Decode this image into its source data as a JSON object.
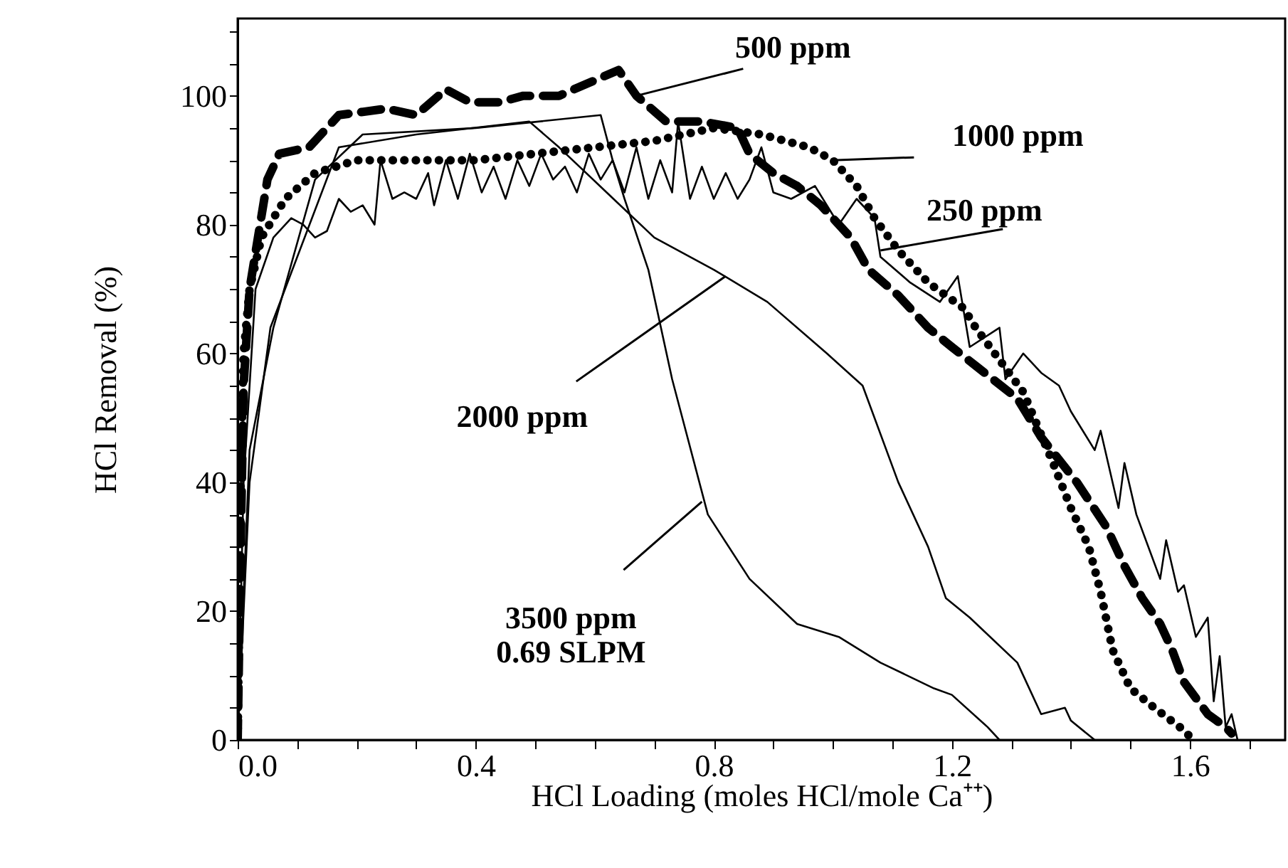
{
  "chart_data": {
    "type": "line",
    "xlabel": "HCl Loading (moles HCl/mole Ca⁺⁺)",
    "ylabel": "HCl Removal (%)",
    "xlim": [
      0,
      1.76
    ],
    "ylim": [
      0,
      112
    ],
    "xticks": [
      {
        "value": 0,
        "label": "0.0"
      },
      {
        "value": 0.1,
        "label": null
      },
      {
        "value": 0.2,
        "label": null
      },
      {
        "value": 0.3,
        "label": null
      },
      0.4,
      {
        "value": 0.5,
        "label": null
      },
      {
        "value": 0.6,
        "label": null
      },
      {
        "value": 0.7,
        "label": null
      },
      0.8,
      {
        "value": 0.9,
        "label": null
      },
      {
        "value": 1.0,
        "label": null
      },
      {
        "value": 1.1,
        "label": null
      },
      1.2,
      {
        "value": 1.3,
        "label": null
      },
      {
        "value": 1.4,
        "label": null
      },
      {
        "value": 1.5,
        "label": null
      },
      1.6,
      {
        "value": 1.7,
        "label": null
      }
    ],
    "yticks": [
      0,
      {
        "value": 5,
        "label": null
      },
      {
        "value": 10,
        "label": null
      },
      {
        "value": 15,
        "label": null
      },
      20,
      {
        "value": 25,
        "label": null
      },
      {
        "value": 30,
        "label": null
      },
      {
        "value": 35,
        "label": null
      },
      40,
      {
        "value": 45,
        "label": null
      },
      {
        "value": 50,
        "label": null
      },
      {
        "value": 55,
        "label": null
      },
      60,
      {
        "value": 65,
        "label": null
      },
      {
        "value": 70,
        "label": null
      },
      {
        "value": 75,
        "label": null
      },
      80,
      {
        "value": 85,
        "label": null
      },
      {
        "value": 90,
        "label": null
      },
      {
        "value": 95,
        "label": null
      },
      100,
      {
        "value": 105,
        "label": null
      },
      {
        "value": 110,
        "label": null
      }
    ],
    "grid": false,
    "series": [
      {
        "color": "#000000",
        "line_style": "solid",
        "x": [
          0,
          0.01,
          0.03,
          0.06,
          0.09,
          0.11,
          0.13,
          0.15,
          0.17,
          0.19,
          0.21,
          0.23,
          0.24,
          0.26,
          0.28,
          0.3,
          0.32,
          0.33,
          0.35,
          0.37,
          0.39,
          0.41,
          0.43,
          0.45,
          0.47,
          0.49,
          0.51,
          0.53,
          0.55,
          0.57,
          0.59,
          0.61,
          0.63,
          0.65,
          0.67,
          0.69,
          0.71,
          0.73,
          0.74,
          0.76,
          0.78,
          0.8,
          0.82,
          0.84,
          0.86,
          0.88,
          0.9,
          0.93,
          0.97,
          1.01,
          1.04,
          1.07,
          1.08,
          1.13,
          1.18,
          1.21,
          1.23,
          1.28,
          1.29,
          1.32,
          1.35,
          1.38,
          1.4,
          1.44,
          1.45,
          1.48,
          1.49,
          1.51,
          1.55,
          1.56,
          1.58,
          1.59,
          1.61,
          1.63,
          1.64,
          1.65,
          1.66,
          1.67,
          1.68
        ],
        "values": [
          0,
          40,
          70,
          78,
          81,
          80,
          78,
          79,
          84,
          82,
          83,
          80,
          90,
          84,
          85,
          84,
          88,
          83,
          90,
          84,
          91,
          85,
          89,
          84,
          90,
          86,
          91,
          87,
          89,
          85,
          91,
          87,
          90,
          85,
          92,
          84,
          90,
          85,
          96,
          84,
          89,
          84,
          88,
          84,
          87,
          92,
          85,
          84,
          86,
          80,
          84,
          81,
          75,
          71,
          68,
          72,
          61,
          64,
          56,
          60,
          57,
          55,
          51,
          45,
          48,
          36,
          43,
          35,
          25,
          31,
          23,
          24,
          16,
          19,
          6,
          13,
          2,
          4,
          0
        ]
      },
      {
        "color": "#000000",
        "line_style": "dashed",
        "x": [
          0,
          0.005,
          0.01,
          0.02,
          0.05,
          0.07,
          0.12,
          0.17,
          0.25,
          0.3,
          0.35,
          0.39,
          0.44,
          0.48,
          0.54,
          0.59,
          0.64,
          0.67,
          0.72,
          0.78,
          0.84,
          0.86,
          0.9,
          0.94,
          0.98,
          1.03,
          1.06,
          1.11,
          1.16,
          1.2,
          1.31,
          1.35,
          1.41,
          1.46,
          1.49,
          1.52,
          1.55,
          1.57,
          1.59,
          1.63,
          1.66,
          1.67
        ],
        "values": [
          0,
          30,
          55,
          70,
          87,
          91,
          92,
          97,
          98,
          97,
          101,
          99,
          99,
          100,
          100,
          102,
          104,
          100,
          96,
          96,
          95,
          91,
          88,
          86,
          83,
          78,
          73,
          69,
          64,
          61,
          53,
          47,
          40,
          33,
          27,
          22,
          18,
          14,
          9,
          4,
          2,
          1
        ]
      },
      {
        "color": "#000000",
        "line_style": "dotted",
        "x": [
          0,
          0.005,
          0.01,
          0.02,
          0.04,
          0.08,
          0.13,
          0.2,
          0.3,
          0.4,
          0.5,
          0.6,
          0.7,
          0.8,
          0.88,
          0.96,
          1.0,
          1.04,
          1.07,
          1.11,
          1.16,
          1.22,
          1.24,
          1.32,
          1.37,
          1.4,
          1.43,
          1.45,
          1.47,
          1.5,
          1.54,
          1.59,
          1.6
        ],
        "values": [
          0,
          40,
          60,
          70,
          78,
          84,
          88,
          90,
          90,
          90,
          91,
          92,
          93,
          95,
          94,
          92,
          90,
          86,
          81,
          76,
          71,
          67,
          64,
          54,
          43,
          36,
          30,
          23,
          14,
          8,
          5,
          1.5,
          0.5
        ]
      },
      {
        "color": "#000000",
        "line_style": "solid",
        "x": [
          0,
          0.02,
          0.055,
          0.17,
          0.3,
          0.49,
          0.54,
          0.62,
          0.7,
          0.8,
          0.89,
          0.99,
          1.05,
          1.11,
          1.16,
          1.19,
          1.23,
          1.31,
          1.35,
          1.39,
          1.4,
          1.44
        ],
        "values": [
          0,
          40,
          64,
          92,
          94,
          96,
          92,
          85,
          78,
          73,
          68,
          60,
          55,
          40,
          30,
          22,
          19,
          12,
          4,
          5,
          3,
          0
        ]
      },
      {
        "color": "#000000",
        "line_style": "solid",
        "x": [
          0,
          0.02,
          0.06,
          0.13,
          0.21,
          0.4,
          0.61,
          0.63,
          0.65,
          0.69,
          0.73,
          0.79,
          0.86,
          0.94,
          1.01,
          1.08,
          1.17,
          1.2,
          1.26,
          1.28
        ],
        "values": [
          0,
          45,
          64,
          87,
          94,
          95,
          97,
          90,
          84,
          73,
          56,
          35,
          25,
          18,
          16,
          12,
          8,
          7,
          2,
          0
        ]
      }
    ],
    "annotations": [
      {
        "text": "500 ppm",
        "x": 0.67,
        "y": 100
      },
      {
        "text": "1000 ppm",
        "x": 1.0,
        "y": 90
      },
      {
        "text": "250 ppm",
        "x": 1.08,
        "y": 76
      },
      {
        "text": "2000 ppm",
        "x": 0.82,
        "y": 72
      },
      {
        "text": "3500 ppm\n0.69 SLPM",
        "x": 0.78,
        "y": 37
      }
    ]
  }
}
